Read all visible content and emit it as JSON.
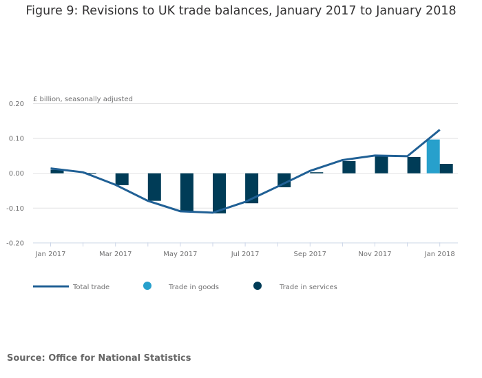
{
  "title": "Figure 9: Revisions to UK trade balances, January 2017 to January 2018",
  "source": "Source: Office for National Statistics",
  "chart_data": {
    "type": "bar",
    "title": "Figure 9: Revisions to UK trade balances, January 2017 to January 2018",
    "ylabel": "£ billion, seasonally adjusted",
    "xlabel": "",
    "ylim": [
      -0.2,
      0.2
    ],
    "yticks": [
      "0.20",
      "0.10",
      "0.00",
      "-0.10",
      "-0.20"
    ],
    "ytick_values": [
      0.2,
      0.1,
      0,
      -0.1,
      -0.2
    ],
    "grid": true,
    "legend_position": "bottom",
    "categories": [
      "Jan 2017",
      "Feb 2017",
      "Mar 2017",
      "Apr 2017",
      "May 2017",
      "Jun 2017",
      "Jul 2017",
      "Aug 2017",
      "Sep 2017",
      "Oct 2017",
      "Nov 2017",
      "Dec 2017",
      "Jan 2018"
    ],
    "xtick_labels": [
      "Jan 2017",
      "",
      "Mar 2017",
      "",
      "May 2017",
      "",
      "Jul 2017",
      "",
      "Sep 2017",
      "",
      "Nov 2017",
      "",
      "Jan 2018"
    ],
    "series": [
      {
        "name": "Total trade",
        "type": "line",
        "color": "#206095",
        "values": [
          0.014,
          0.003,
          -0.033,
          -0.079,
          -0.109,
          -0.113,
          -0.082,
          -0.038,
          0.007,
          0.038,
          0.051,
          0.049,
          0.125
        ]
      },
      {
        "name": "Trade in goods",
        "type": "bar",
        "color": "#27a0cc",
        "values": [
          0,
          0,
          0,
          0,
          0,
          0,
          0,
          0,
          0,
          0,
          0,
          0,
          0.097
        ]
      },
      {
        "name": "Trade in services",
        "type": "bar",
        "color": "#003c57",
        "values": [
          0.01,
          0.001,
          -0.034,
          -0.079,
          -0.109,
          -0.115,
          -0.086,
          -0.04,
          0.003,
          0.035,
          0.048,
          0.047,
          0.027
        ]
      }
    ]
  }
}
